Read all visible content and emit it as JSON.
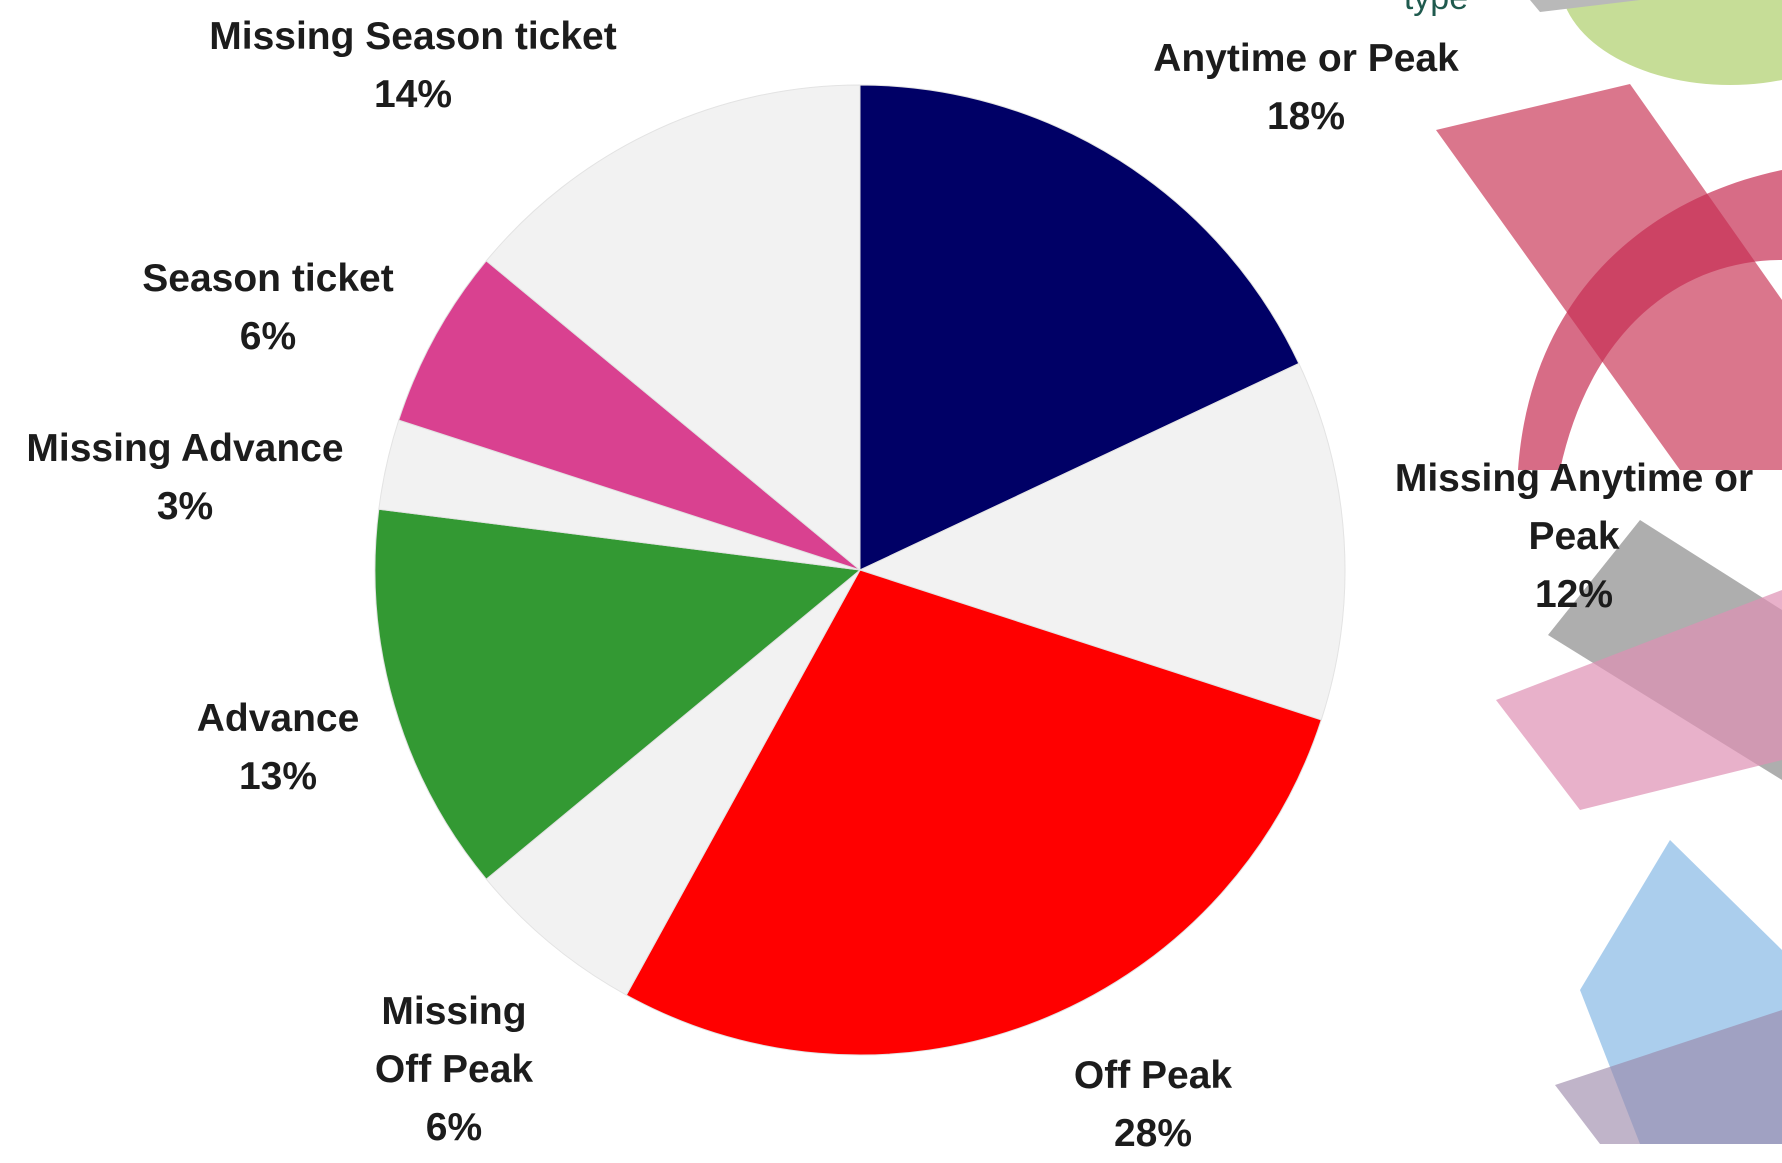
{
  "caption_fragment": "type",
  "chart_data": {
    "type": "pie",
    "legend": "none",
    "slices": [
      {
        "label_lines": [
          "Anytime or Peak"
        ],
        "value": 18,
        "value_label": "18%",
        "color": "#000066"
      },
      {
        "label_lines": [
          "Missing Anytime or",
          "Peak"
        ],
        "value": 12,
        "value_label": "12%",
        "color": "#f2f2f2"
      },
      {
        "label_lines": [
          "Off Peak"
        ],
        "value": 28,
        "value_label": "28%",
        "color": "#ff0000"
      },
      {
        "label_lines": [
          "Missing",
          "Off Peak"
        ],
        "value": 6,
        "value_label": "6%",
        "color": "#f2f2f2"
      },
      {
        "label_lines": [
          "Advance"
        ],
        "value": 13,
        "value_label": "13%",
        "color": "#339933"
      },
      {
        "label_lines": [
          "Missing Advance"
        ],
        "value": 3,
        "value_label": "3%",
        "color": "#f2f2f2"
      },
      {
        "label_lines": [
          "Season ticket"
        ],
        "value": 6,
        "value_label": "6%",
        "color": "#d94190"
      },
      {
        "label_lines": [
          "Missing Season ticket"
        ],
        "value": 14,
        "value_label": "14%",
        "color": "#f2f2f2"
      }
    ]
  }
}
